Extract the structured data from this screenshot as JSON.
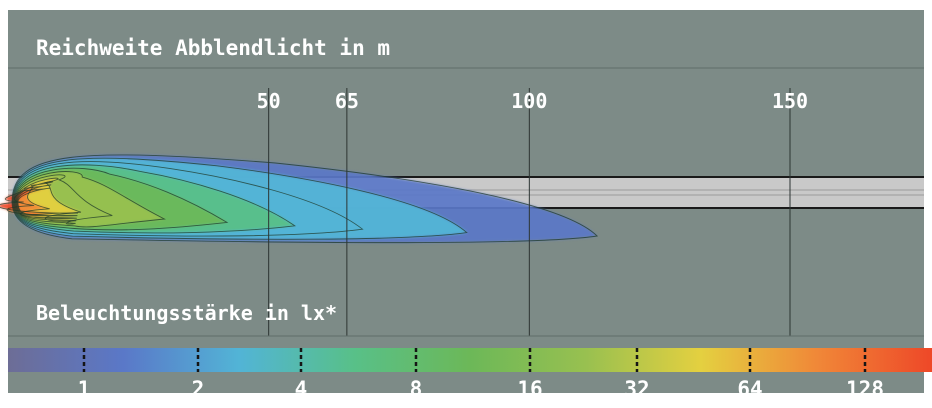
{
  "chart_data": {
    "type": "heatmap",
    "title": "Reichweite Abblendlicht in m",
    "xlabel": "",
    "ylabel": "",
    "x_ticks": [
      50,
      65,
      100,
      150
    ],
    "xlim": [
      0,
      170
    ],
    "colorbar": {
      "label": "Beleuchtungsstärke in lx*",
      "ticks": [
        1,
        2,
        4,
        8,
        16,
        32,
        64,
        128
      ],
      "scale": "log2",
      "colors": [
        "#6d6d96",
        "#5a78c8",
        "#52b4d6",
        "#58c088",
        "#6cb858",
        "#98c050",
        "#e4d040",
        "#f08838",
        "#ee4828"
      ]
    },
    "light_reach_max_m": 113,
    "contour_reach_m": [
      113,
      88,
      68,
      55,
      42,
      30,
      20,
      14,
      8,
      5,
      3
    ],
    "grid": true
  },
  "colors": {
    "background": "#7d8b87",
    "band": "#c9c9c9",
    "text": "#ffffff",
    "line": "#1a1a1a"
  }
}
